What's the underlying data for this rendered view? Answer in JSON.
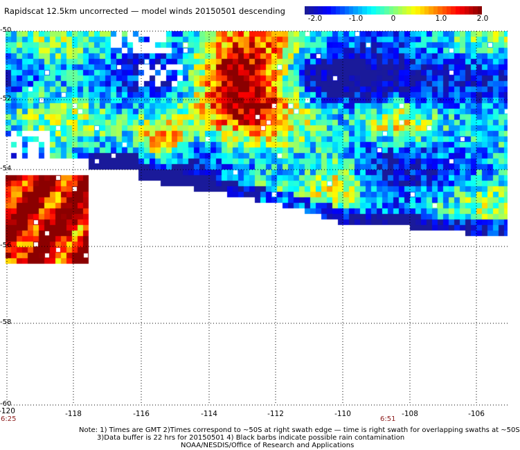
{
  "title": "Rapidscat 12.5km uncorrected — model winds 20150501 descending",
  "colorbar": {
    "labels": [
      "-2.0",
      "-1.0",
      "0",
      "1.0",
      "2.0"
    ],
    "stops": [
      "#1a1a9a",
      "#0000ff",
      "#0080ff",
      "#00ffff",
      "#80ff80",
      "#ffff00",
      "#ff8000",
      "#ff0000",
      "#8b0000"
    ]
  },
  "map": {
    "lat_labels": [
      "-50",
      "-52",
      "-54",
      "-56",
      "-58",
      "-60"
    ],
    "lon_labels": [
      "-120",
      "-118",
      "-116",
      "-114",
      "-112",
      "-110",
      "-108",
      "-106"
    ],
    "time_labels": {
      "left": "6:25",
      "right": "6:51"
    }
  },
  "notes": {
    "line1": "Note: 1) Times are GMT 2)Times correspond to ~50S at right swath edge — time is right swath for overlapping swaths at ~50S",
    "line2": "3)Data buffer is 22 hrs for 20150501 4) Black barbs indicate possible rain contamination",
    "line3": "NOAA/NESDIS/Office of Research and Applications"
  }
}
